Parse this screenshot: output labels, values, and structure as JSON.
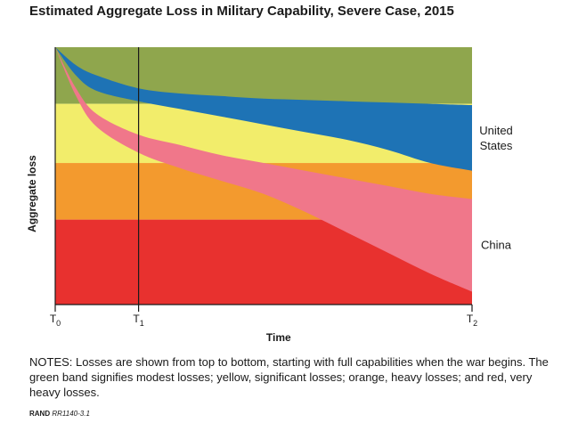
{
  "title": "Estimated Aggregate Loss in Military Capability, Severe Case, 2015",
  "notes": "NOTES: Losses are shown from top to bottom, starting with full capabilities when the war begins. The green band signifies modest losses; yellow, significant losses; orange, heavy losses; and red, very heavy losses.",
  "source": {
    "label": "RAND",
    "id": "RR1140-3.1"
  },
  "chart_data": {
    "type": "area",
    "title": "Estimated Aggregate Loss in Military Capability, Severe Case, 2015",
    "xlabel": "Time",
    "ylabel": "Aggregate loss",
    "x_ticks": [
      {
        "label": "T",
        "sub": "0",
        "x": 0
      },
      {
        "label": "T",
        "sub": "1",
        "x": 0.2
      },
      {
        "label": "T",
        "sub": "2",
        "x": 1
      }
    ],
    "xlim": [
      0,
      1
    ],
    "ylim": [
      0,
      1
    ],
    "grid": false,
    "reference_line_x": 0.2,
    "bands": [
      {
        "name": "modest losses",
        "from": 0.78,
        "to": 1.0,
        "color": "#8fa64d"
      },
      {
        "name": "significant losses",
        "from": 0.55,
        "to": 0.78,
        "color": "#f2ed6b"
      },
      {
        "name": "heavy losses",
        "from": 0.33,
        "to": 0.55,
        "color": "#f39a2e"
      },
      {
        "name": "very heavy losses",
        "from": 0.0,
        "to": 0.33,
        "color": "#e8312f"
      }
    ],
    "series": [
      {
        "name": "United States",
        "color": "#1e73b5",
        "x": [
          0,
          0.05,
          0.1,
          0.2,
          0.3,
          0.4,
          0.5,
          0.6,
          0.7,
          0.8,
          0.9,
          1.0
        ],
        "upper": [
          1.0,
          0.93,
          0.89,
          0.84,
          0.82,
          0.81,
          0.8,
          0.795,
          0.79,
          0.785,
          0.78,
          0.775
        ],
        "lower": [
          1.0,
          0.89,
          0.83,
          0.79,
          0.76,
          0.73,
          0.7,
          0.67,
          0.64,
          0.6,
          0.55,
          0.52
        ]
      },
      {
        "name": "China",
        "color": "#f0778a",
        "x": [
          0,
          0.05,
          0.1,
          0.2,
          0.3,
          0.4,
          0.5,
          0.6,
          0.7,
          0.8,
          0.9,
          1.0
        ],
        "upper": [
          1.0,
          0.84,
          0.74,
          0.66,
          0.62,
          0.58,
          0.55,
          0.52,
          0.49,
          0.46,
          0.43,
          0.41
        ],
        "lower": [
          1.0,
          0.81,
          0.69,
          0.59,
          0.53,
          0.48,
          0.43,
          0.36,
          0.28,
          0.2,
          0.12,
          0.05
        ]
      }
    ]
  }
}
